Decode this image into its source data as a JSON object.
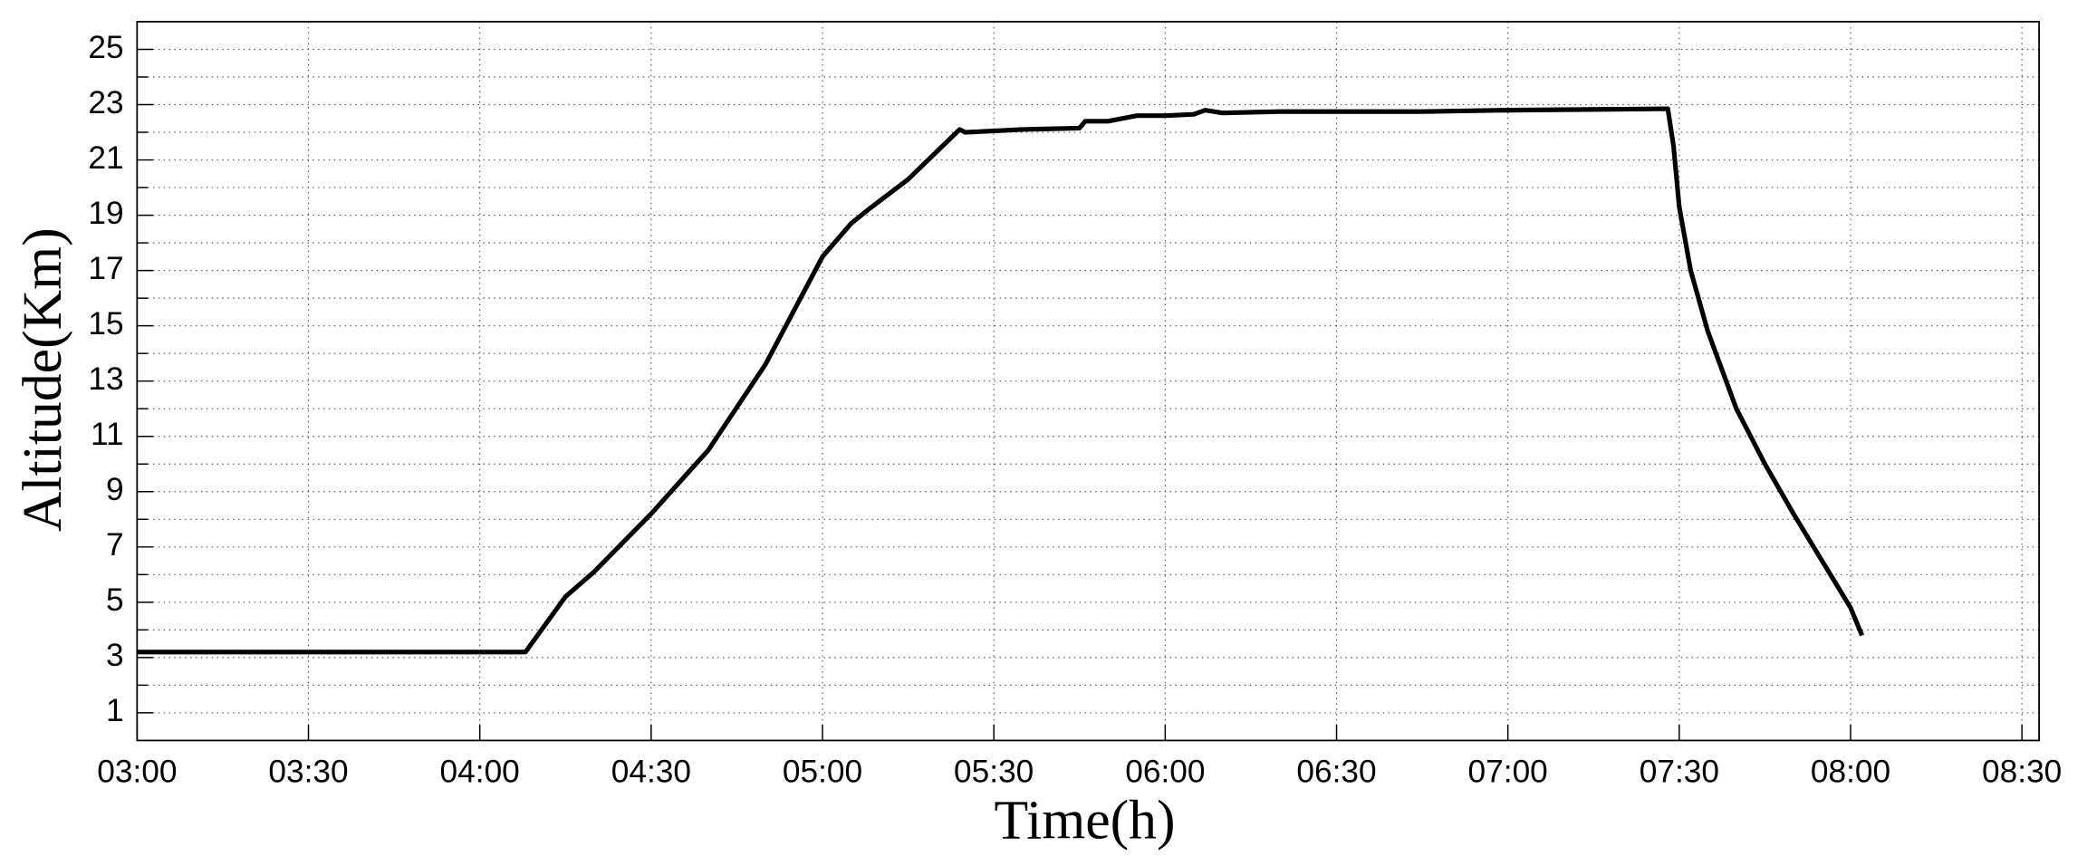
{
  "chart_data": {
    "type": "line",
    "xlabel": "Time(h)",
    "ylabel": "Altitude(Km)",
    "series": [
      {
        "name": "Altitude",
        "color": "#000000",
        "x": [
          "03:00",
          "04:08",
          "04:15",
          "04:20",
          "04:30",
          "04:40",
          "04:50",
          "05:00",
          "05:05",
          "05:08",
          "05:15",
          "05:20",
          "05:24",
          "05:25",
          "05:35",
          "05:45",
          "05:46",
          "05:50",
          "05:55",
          "06:00",
          "06:05",
          "06:07",
          "06:10",
          "06:20",
          "06:45",
          "07:00",
          "07:28",
          "07:29",
          "07:30",
          "07:32",
          "07:35",
          "07:40",
          "07:45",
          "07:50",
          "07:55",
          "08:00",
          "08:02"
        ],
        "values": [
          3.2,
          3.2,
          5.2,
          6.1,
          8.2,
          10.5,
          13.6,
          17.5,
          18.7,
          19.2,
          20.3,
          21.3,
          22.1,
          22.0,
          22.1,
          22.15,
          22.4,
          22.4,
          22.6,
          22.6,
          22.65,
          22.8,
          22.7,
          22.75,
          22.75,
          22.8,
          22.85,
          21.5,
          19.3,
          17.0,
          14.8,
          12.0,
          10.0,
          8.2,
          6.5,
          4.8,
          3.8
        ]
      }
    ],
    "xlim": [
      "03:00",
      "08:33"
    ],
    "xticks": [
      "03:00",
      "03:30",
      "04:00",
      "04:30",
      "05:00",
      "05:30",
      "06:00",
      "06:30",
      "07:00",
      "07:30",
      "08:00",
      "08:30"
    ],
    "ylim": [
      0,
      26
    ],
    "yticks": [
      1,
      3,
      5,
      7,
      9,
      11,
      13,
      15,
      17,
      19,
      21,
      23,
      25
    ],
    "yminorticks": [
      2,
      4,
      6,
      8,
      10,
      12,
      14,
      16,
      18,
      20,
      22,
      24
    ],
    "grid": true
  }
}
